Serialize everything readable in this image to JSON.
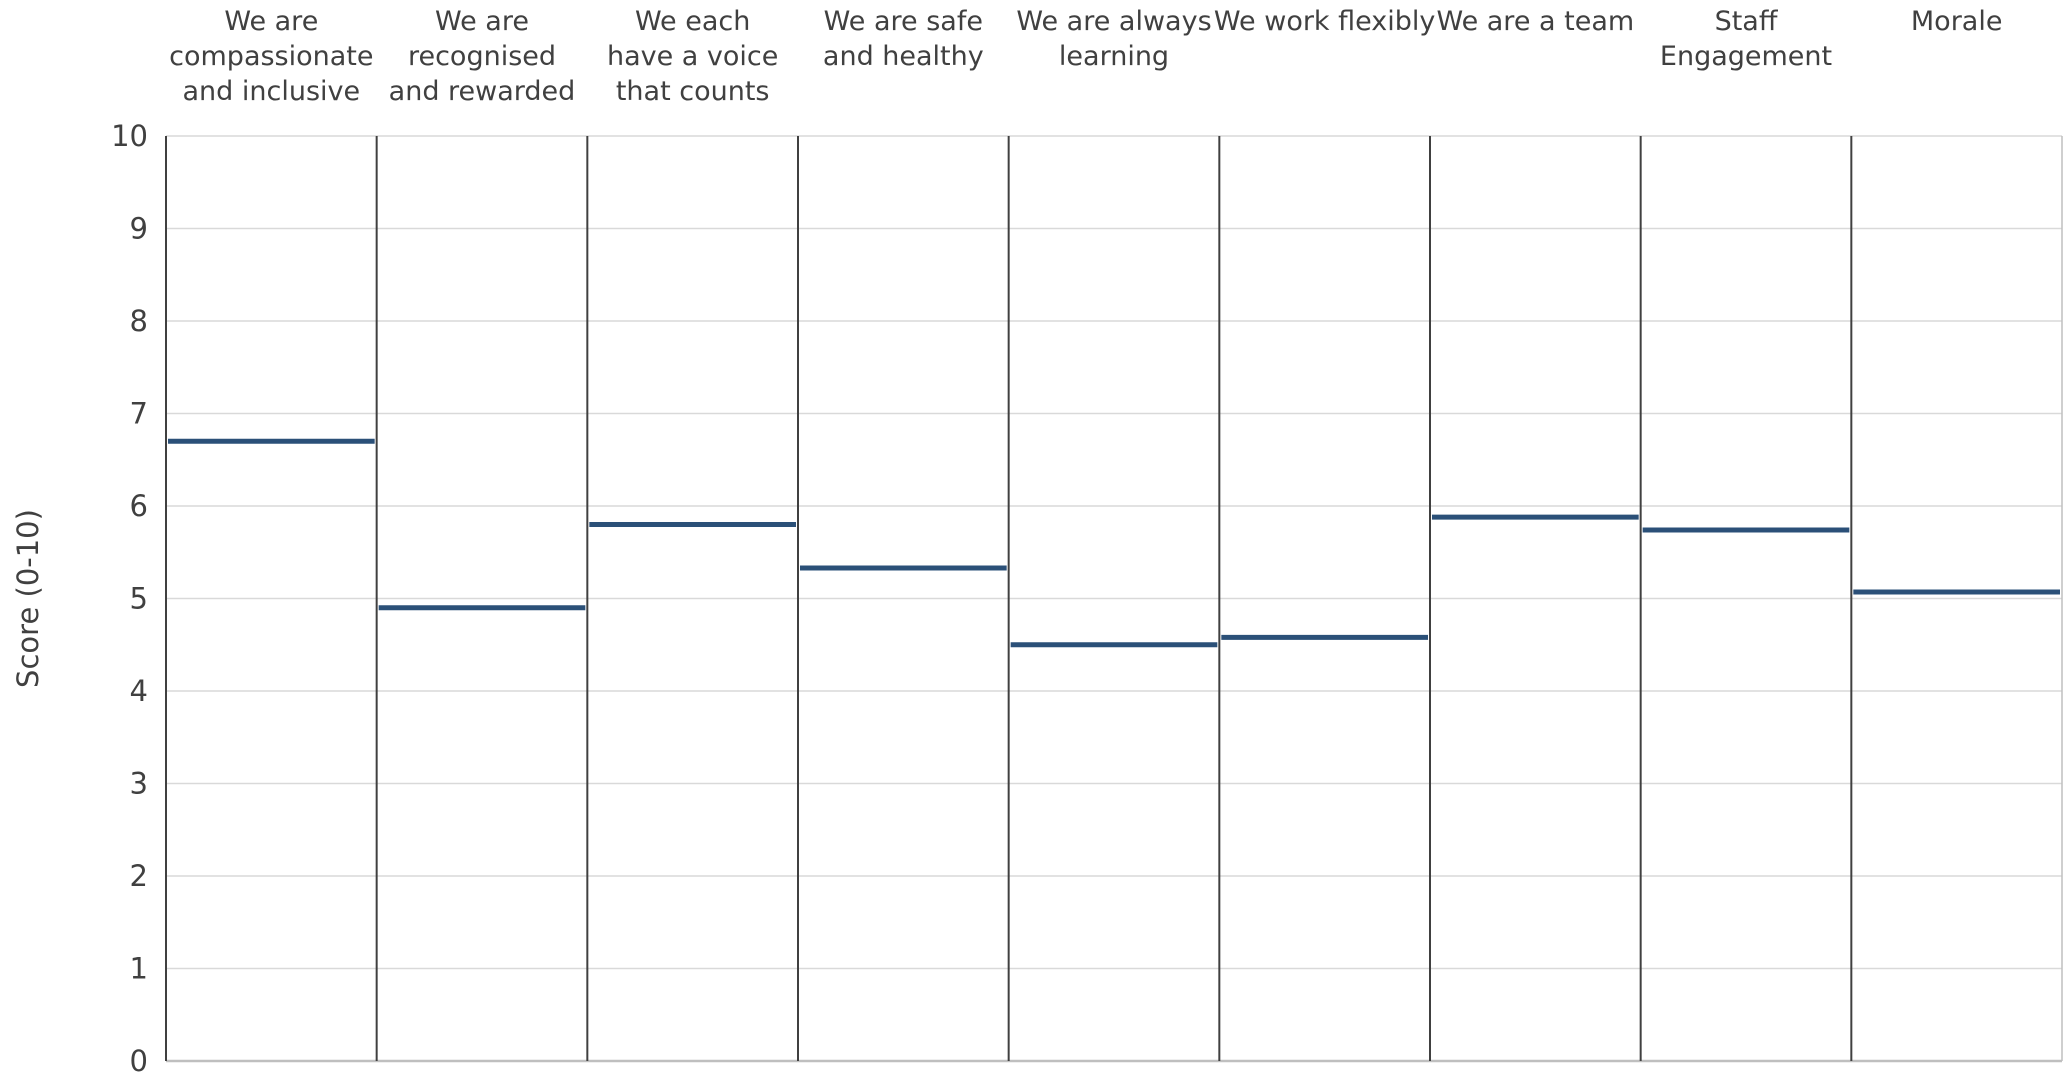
{
  "chart_data": {
    "type": "bar",
    "title": "",
    "xlabel": "",
    "ylabel": "Score (0-10)",
    "ylim": [
      0,
      10
    ],
    "yticks": [
      0,
      1,
      2,
      3,
      4,
      5,
      6,
      7,
      8,
      9,
      10
    ],
    "grid": true,
    "legend": "none",
    "categories": [
      [
        "We are",
        "compassionate",
        "and inclusive"
      ],
      [
        "We are",
        "recognised",
        "and rewarded"
      ],
      [
        "We each",
        "have a voice",
        "that counts"
      ],
      [
        "We are safe",
        "and healthy"
      ],
      [
        "We are always",
        "learning"
      ],
      [
        "We work flexibly"
      ],
      [
        "We are a team"
      ],
      [
        "Staff",
        "Engagement"
      ],
      [
        "Morale"
      ]
    ],
    "values": [
      6.7,
      4.9,
      5.8,
      5.33,
      4.5,
      4.58,
      5.88,
      5.74,
      5.07
    ],
    "colors": {
      "value_line": "#2b5078",
      "grid": "#d9d9d9",
      "divider": "#404040",
      "axis": "#bfbfbf",
      "text": "#404040"
    }
  }
}
